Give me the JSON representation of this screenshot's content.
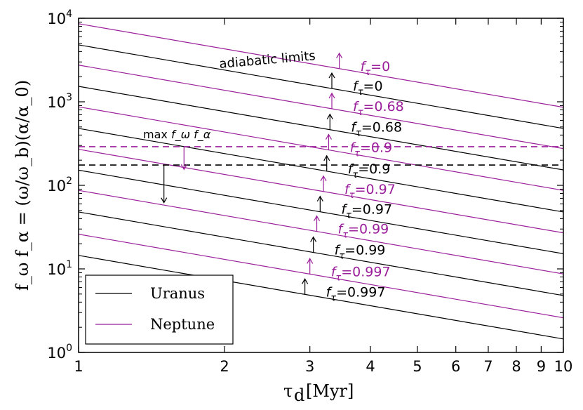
{
  "chart_data": {
    "type": "line",
    "xscale": "log",
    "yscale": "log",
    "xlim": [
      1,
      10
    ],
    "ylim": [
      1,
      10000
    ],
    "xlabel": "τ_d [Myr]",
    "xlabel_parts": {
      "symbol": "τ",
      "sub": "d",
      "unit": "[Myr]"
    },
    "ylabel": "f_ω f_α = (ω/ω_b)(α/α_0)",
    "x_ticks": [
      1,
      2,
      3,
      4,
      5,
      6,
      7,
      8,
      9,
      10
    ],
    "x_tick_labels": [
      "1",
      "2",
      "3",
      "4",
      "5",
      "6",
      "7",
      "8",
      "9",
      "10"
    ],
    "y_ticks": [
      1,
      10,
      100,
      1000,
      10000
    ],
    "y_tick_labels": [
      {
        "base": "10",
        "exp": "0"
      },
      {
        "base": "10",
        "exp": "1"
      },
      {
        "base": "10",
        "exp": "2"
      },
      {
        "base": "10",
        "exp": "3"
      },
      {
        "base": "10",
        "exp": "4"
      }
    ],
    "slope": -1,
    "series": [
      {
        "name": "Neptune f_τ=0",
        "planet": "Neptune",
        "color": "#9b1f9b",
        "y_at_1": 8600,
        "arrow_x": 3.45,
        "label": "f_τ=0"
      },
      {
        "name": "Uranus f_τ=0",
        "planet": "Uranus",
        "color": "#000000",
        "y_at_1": 4800,
        "arrow_x": 3.33,
        "label": "f_τ=0"
      },
      {
        "name": "Neptune f_τ=0.68",
        "planet": "Neptune",
        "color": "#9b1f9b",
        "y_at_1": 2750,
        "arrow_x": 3.33,
        "label": "f_τ=0.68"
      },
      {
        "name": "Uranus f_τ=0.68",
        "planet": "Uranus",
        "color": "#000000",
        "y_at_1": 1530,
        "arrow_x": 3.3,
        "label": "f_τ=0.68"
      },
      {
        "name": "Neptune f_τ=0.9",
        "planet": "Neptune",
        "color": "#9b1f9b",
        "y_at_1": 870,
        "arrow_x": 3.28,
        "label": "f_τ=0.9"
      },
      {
        "name": "Uranus f_τ=0.9",
        "planet": "Uranus",
        "color": "#000000",
        "y_at_1": 480,
        "arrow_x": 3.25,
        "label": "f_τ=0.9"
      },
      {
        "name": "Neptune f_τ=0.97",
        "planet": "Neptune",
        "color": "#9b1f9b",
        "y_at_1": 270,
        "arrow_x": 3.2,
        "label": "f_τ=0.97"
      },
      {
        "name": "Uranus f_τ=0.97",
        "planet": "Uranus",
        "color": "#000000",
        "y_at_1": 152,
        "arrow_x": 3.15,
        "label": "f_τ=0.97"
      },
      {
        "name": "Neptune f_τ=0.99",
        "planet": "Neptune",
        "color": "#9b1f9b",
        "y_at_1": 87,
        "arrow_x": 3.1,
        "label": "f_τ=0.99"
      },
      {
        "name": "Uranus f_τ=0.99",
        "planet": "Uranus",
        "color": "#000000",
        "y_at_1": 48,
        "arrow_x": 3.05,
        "label": "f_τ=0.99"
      },
      {
        "name": "Neptune f_τ=0.997",
        "planet": "Neptune",
        "color": "#9b1f9b",
        "y_at_1": 26,
        "arrow_x": 3.0,
        "label": "f_τ=0.997"
      },
      {
        "name": "Uranus f_τ=0.997",
        "planet": "Uranus",
        "color": "#000000",
        "y_at_1": 14.5,
        "arrow_x": 2.93,
        "label": "f_τ=0.997"
      }
    ],
    "max_lines": [
      {
        "name": "Neptune max f_ωf_α",
        "planet": "Neptune",
        "color": "#9b1f9b",
        "y": 290,
        "arrow_x": 1.65,
        "arrow_to": 155
      },
      {
        "name": "Uranus max f_ωf_α",
        "planet": "Uranus",
        "color": "#000000",
        "y": 175,
        "arrow_x": 1.5,
        "arrow_to": 62
      }
    ],
    "annotations": {
      "adiabatic": "adiabatic limits",
      "max_prefix": "max",
      "max_expr": "f_ω f_α"
    },
    "legend": {
      "location": "lower-left",
      "entries": [
        {
          "label": "Uranus",
          "color": "#000000"
        },
        {
          "label": "Neptune",
          "color": "#9b1f9b"
        }
      ]
    }
  }
}
